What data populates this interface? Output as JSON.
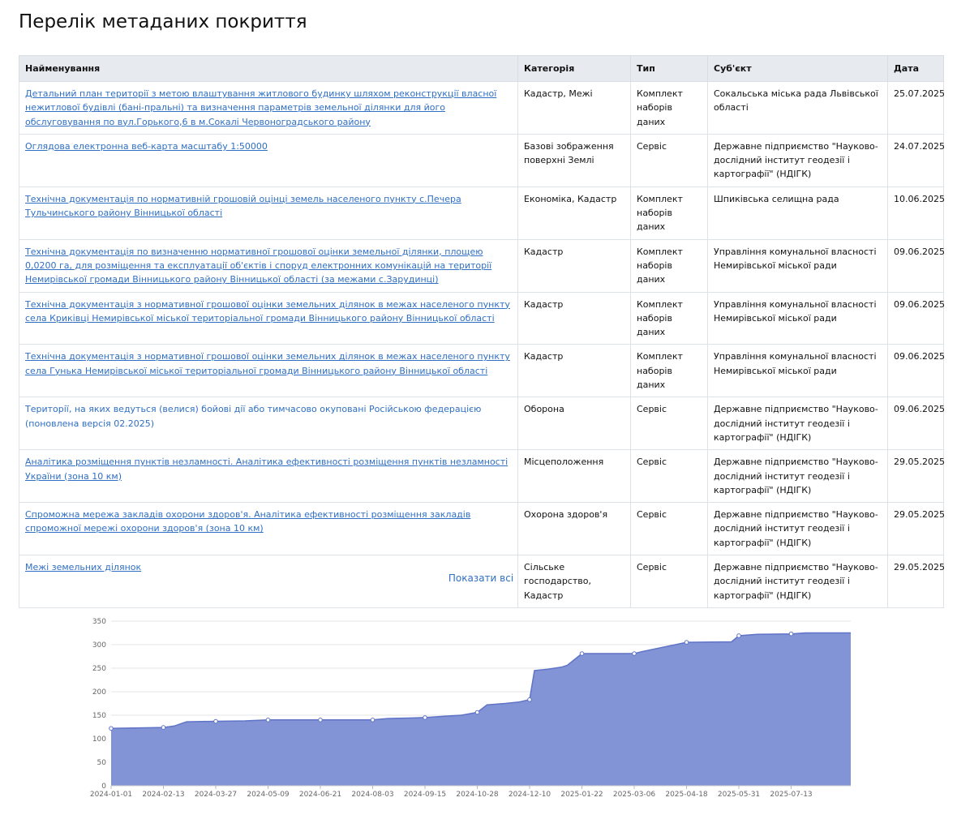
{
  "page": {
    "title": "Перелік метаданих покриття"
  },
  "table": {
    "headers": [
      "Найменування",
      "Категорія",
      "Тип",
      "Суб'єкт",
      "Дата"
    ],
    "rows": [
      {
        "name": "Детальний план території з метою влаштування житлового будинку шляхом реконструкції власної нежитлової будівлі (бані-пральні) та визначення параметрів земельної ділянки для його обслуговування по вул.Горького,6 в м.Сокалі Червоноградського району",
        "category": "Кадастр, Межі",
        "type": "Комплект наборів даних",
        "subject": "Сокальська міська рада Львівської області",
        "date": "25.07.2025"
      },
      {
        "name": "Оглядова електронна веб-карта масштабу 1:50000",
        "category": "Базові зображення поверхні Землі",
        "type": "Сервіс",
        "subject": "Державне підприємство \"Науково-дослідний інститут геодезії і картографії\" (НДІГК)",
        "date": "24.07.2025"
      },
      {
        "name": "Технічна документація по нормативній грошовій оцінці земель населеного пункту с.Печера Тульчинського району Вінницької області",
        "category": "Економіка, Кадастр",
        "type": "Комплект наборів даних",
        "subject": "Шпиківська селищна рада",
        "date": "10.06.2025"
      },
      {
        "name": "Технічна документація по визначенню нормативної грошової оцінки земельної ділянки, площею 0,0200 га, для розміщення та експлуатації об'єктів і споруд електронних комунікацій на території Немирівської громади Вінницького району Вінницької області (за межами с.Зарудинці)",
        "category": "Кадастр",
        "type": "Комплект наборів даних",
        "subject": "Управління комунальної власності Немирівської міської ради",
        "date": "09.06.2025"
      },
      {
        "name": "Технічна документація з нормативної грошової оцінки земельних ділянок в межах населеного пункту села Криківці Немирівської міської територіальної громади Вінницького району Вінницької області",
        "category": "Кадастр",
        "type": "Комплект наборів даних",
        "subject": "Управління комунальної власності Немирівської міської ради",
        "date": "09.06.2025"
      },
      {
        "name": "Технічна документація з нормативної грошової оцінки земельних ділянок в межах населеного пункту села Гунька Немирівської міської територіальної громади Вінницького району Вінницької області",
        "category": "Кадастр",
        "type": "Комплект наборів даних",
        "subject": "Управління комунальної власності Немирівської міської ради",
        "date": "09.06.2025"
      },
      {
        "name": "Території, на яких ведуться (велися) бойові дії або тимчасово окуповані Російською федерацією (поновлена версія 02.2025)",
        "category": "Оборона",
        "type": "Сервіс",
        "subject": "Державне підприємство \"Науково-дослідний інститут геодезії і картографії\" (НДІГК)",
        "date": "09.06.2025"
      },
      {
        "name": "Аналітика розміщення пунктів незламності. Аналітика ефективності розміщення пунктів незламності України (зона 10 км)",
        "category": "Місцеположення",
        "type": "Сервіс",
        "subject": "Державне підприємство \"Науково-дослідний інститут геодезії і картографії\" (НДІГК)",
        "date": "29.05.2025"
      },
      {
        "name": "Спроможна мережа закладів охорони здоров'я. Аналітика ефективності розміщення закладів спроможної мережі охорони здоров'я (зона 10 км)",
        "category": "Охорона здоров'я",
        "type": "Сервіс",
        "subject": "Державне підприємство \"Науково-дослідний інститут геодезії і картографії\" (НДІГК)",
        "date": "29.05.2025"
      },
      {
        "name": "Межі земельних ділянок",
        "category": "Сільське господарство, Кадастр",
        "type": "Сервіс",
        "subject": "Державне підприємство \"Науково-дослідний інститут геодезії і картографії\" (НДІГК)",
        "date": "29.05.2025"
      }
    ]
  },
  "show_all_label": "Показати всі",
  "colors": {
    "link": "#2f6fc4",
    "area_fill": "#8294d6",
    "area_line": "#5f73c7"
  },
  "chart_data": {
    "type": "area",
    "title": "",
    "xlabel": "",
    "ylabel": "",
    "ylim": [
      0,
      350
    ],
    "yticks": [
      0,
      50,
      100,
      150,
      200,
      250,
      300,
      350
    ],
    "xlim": [
      "2024-01-01",
      "2025-08-31"
    ],
    "xticks": [
      "2024-01-01",
      "2024-02-13",
      "2024-03-27",
      "2024-05-09",
      "2024-06-21",
      "2024-08-03",
      "2024-09-15",
      "2024-10-28",
      "2024-12-10",
      "2025-01-22",
      "2025-03-06",
      "2025-04-18",
      "2025-05-31",
      "2025-07-13"
    ],
    "grid": true,
    "series": [
      {
        "x": [
          "2024-01-01",
          "2024-01-20",
          "2024-02-13",
          "2024-02-22",
          "2024-03-03",
          "2024-03-27",
          "2024-04-20",
          "2024-05-09",
          "2024-06-21",
          "2024-08-03",
          "2024-08-15",
          "2024-09-01",
          "2024-09-15",
          "2024-10-01",
          "2024-10-15",
          "2024-10-28",
          "2024-11-05",
          "2024-11-20",
          "2024-12-01",
          "2024-12-10",
          "2024-12-14",
          "2024-12-25",
          "2025-01-05",
          "2025-01-10",
          "2025-01-22",
          "2025-03-06",
          "2025-03-12",
          "2025-04-18",
          "2025-05-25",
          "2025-05-31",
          "2025-06-15",
          "2025-07-13",
          "2025-07-25",
          "2025-08-31"
        ],
        "y": [
          122,
          123,
          124,
          127,
          136,
          137,
          138,
          140,
          140,
          140,
          143,
          144,
          145,
          148,
          150,
          156,
          172,
          175,
          178,
          183,
          245,
          248,
          252,
          256,
          281,
          281,
          285,
          305,
          306,
          319,
          322,
          323,
          325,
          325
        ]
      }
    ],
    "markers": [
      "2024-01-01",
      "2024-02-13",
      "2024-03-27",
      "2024-05-09",
      "2024-06-21",
      "2024-08-03",
      "2024-09-15",
      "2024-10-28",
      "2024-12-10",
      "2025-01-22",
      "2025-03-06",
      "2025-04-18",
      "2025-05-31",
      "2025-07-13"
    ]
  }
}
